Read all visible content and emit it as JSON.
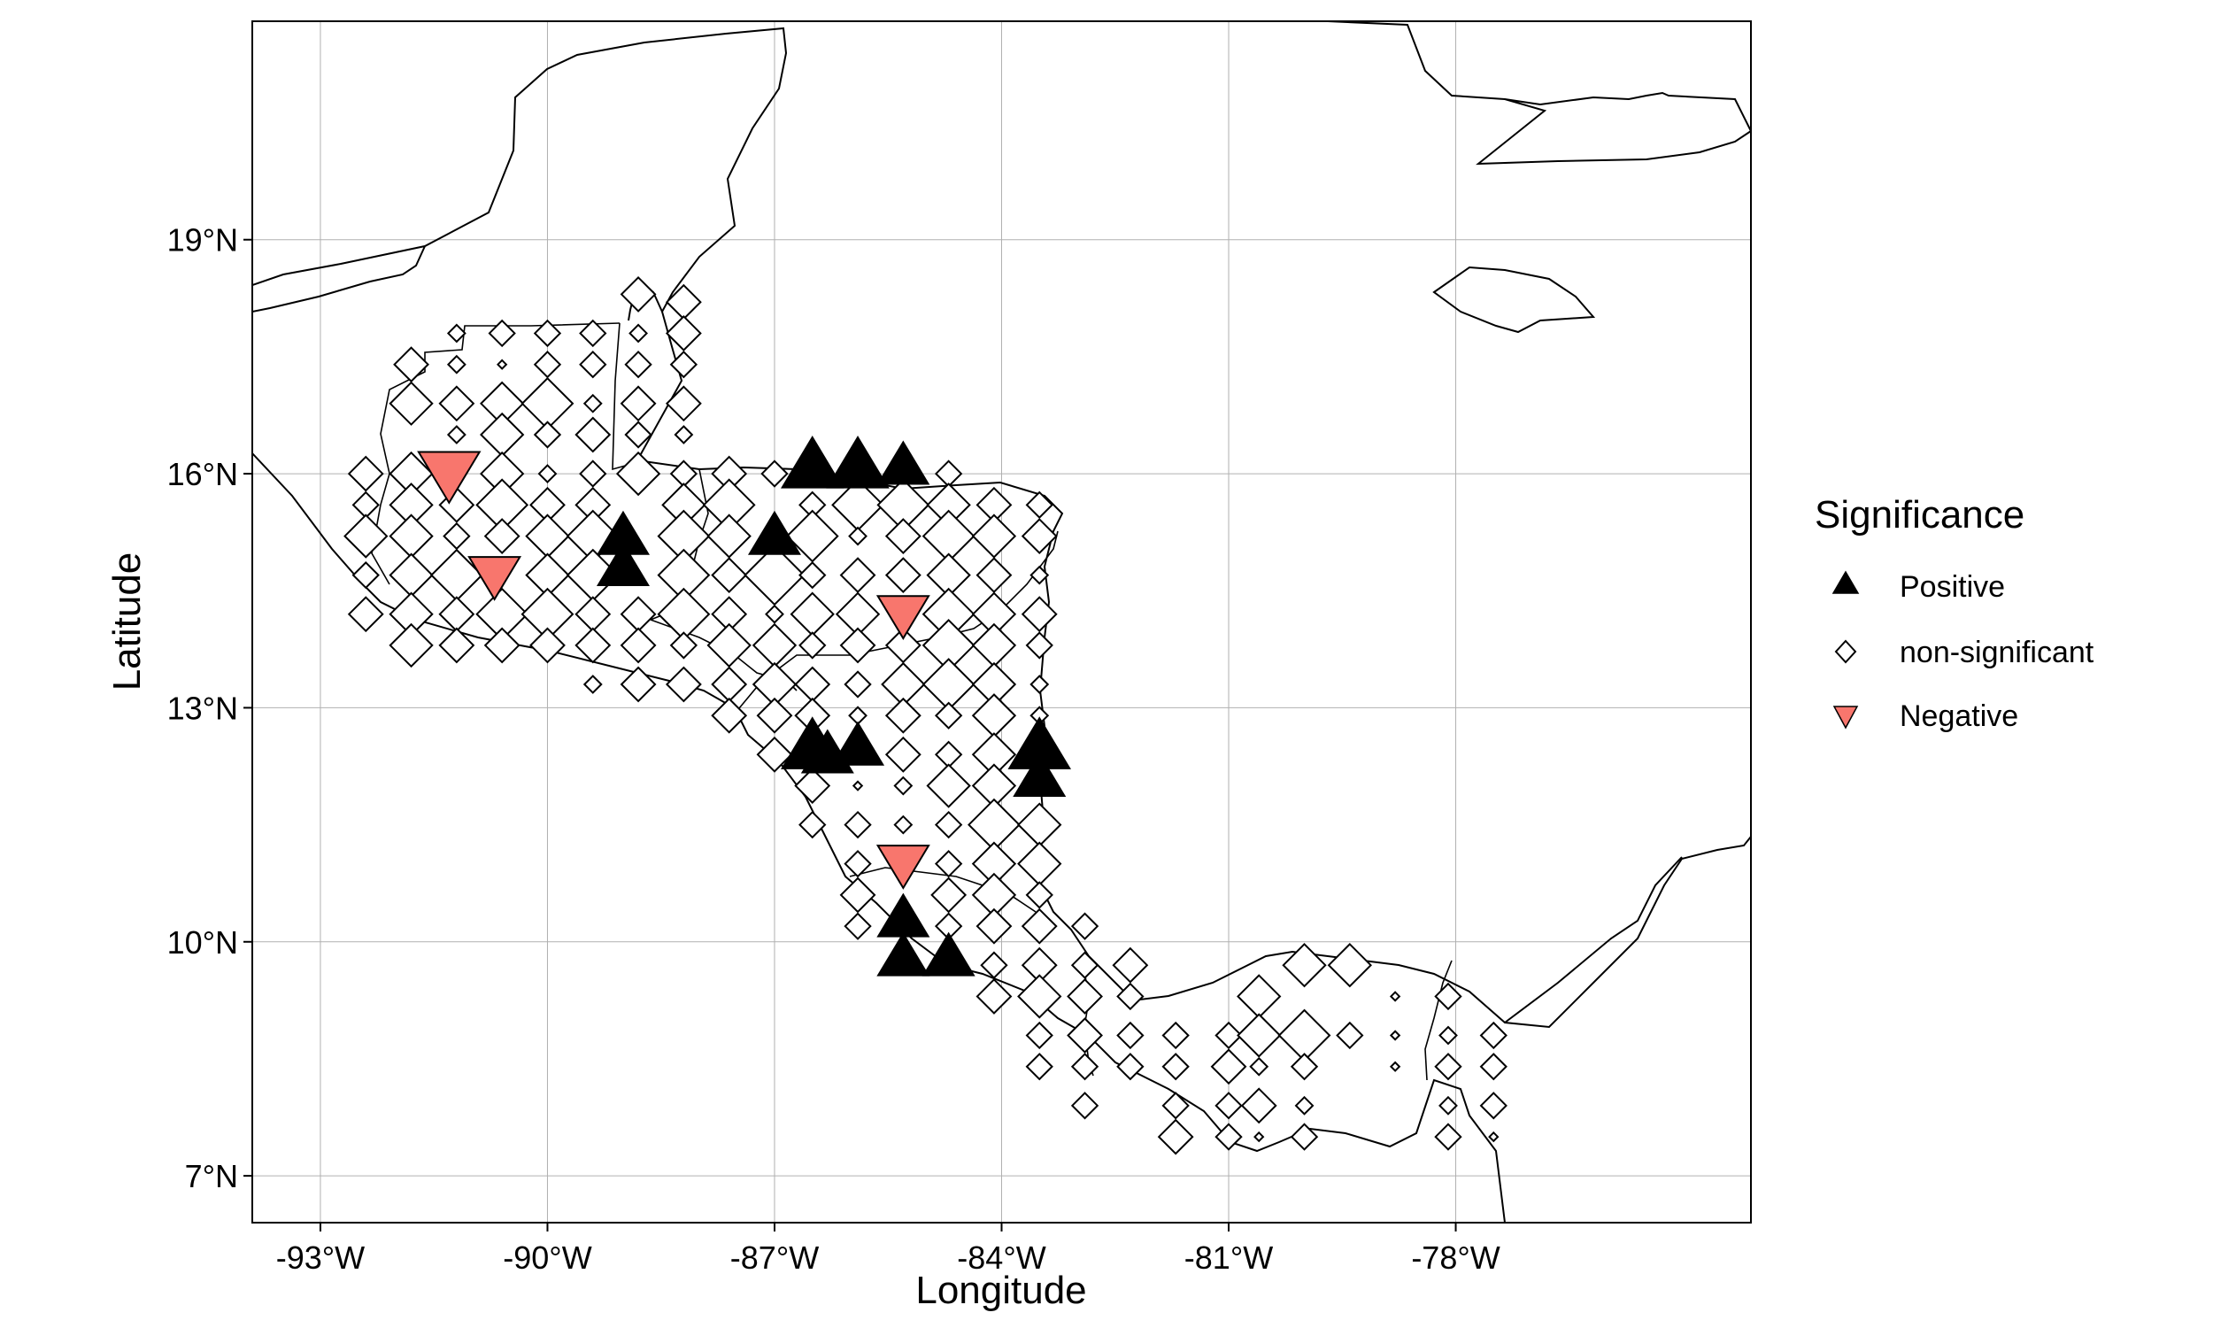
{
  "map": {
    "projection": "equirectangular",
    "lon_range": [
      -93.9,
      -74.1
    ],
    "lat_range": [
      6.4,
      21.8
    ],
    "x_ticks": [
      {
        "value": -93,
        "label": "-93°W"
      },
      {
        "value": -90,
        "label": "-90°W"
      },
      {
        "value": -87,
        "label": "-87°W"
      },
      {
        "value": -84,
        "label": "-84°W"
      },
      {
        "value": -81,
        "label": "-81°W"
      },
      {
        "value": -78,
        "label": "-78°W"
      }
    ],
    "y_ticks": [
      {
        "value": 7,
        "label": "7°N"
      },
      {
        "value": 10,
        "label": "10°N"
      },
      {
        "value": 13,
        "label": "13°N"
      },
      {
        "value": 16,
        "label": "16°N"
      },
      {
        "value": 19,
        "label": "19°N"
      }
    ],
    "xlabel": "Longitude",
    "ylabel": "Latitude",
    "grid": true,
    "legend": {
      "title": "Significance",
      "placement": "right",
      "entries": [
        {
          "key": "positive",
          "label": "Positive",
          "shape": "triangle-up",
          "color": "#000000"
        },
        {
          "key": "ns",
          "label": "non-significant",
          "shape": "diamond",
          "color": "#ffffff"
        },
        {
          "key": "negative",
          "label": "Negative",
          "shape": "triangle-down",
          "color": "#f8766d"
        }
      ]
    },
    "points": {
      "positive": [
        [
          -86.5,
          16.1,
          3
        ],
        [
          -85.9,
          16.1,
          3
        ],
        [
          -85.3,
          16.1,
          2.5
        ],
        [
          -89.0,
          15.2,
          2.5
        ],
        [
          -89.0,
          14.8,
          2.5
        ],
        [
          -87.0,
          15.2,
          2.5
        ],
        [
          -86.5,
          12.5,
          3
        ],
        [
          -86.3,
          12.4,
          2.5
        ],
        [
          -85.9,
          12.5,
          2.5
        ],
        [
          -83.5,
          12.5,
          3
        ],
        [
          -83.5,
          12.1,
          2.5
        ],
        [
          -85.3,
          10.3,
          2.5
        ],
        [
          -85.3,
          9.8,
          2.5
        ],
        [
          -84.7,
          9.8,
          2.5
        ]
      ],
      "negative": [
        [
          -91.3,
          16.0,
          3
        ],
        [
          -90.7,
          14.7,
          2.5
        ],
        [
          -85.3,
          14.2,
          2.5
        ],
        [
          -85.3,
          11.0,
          2.5
        ]
      ],
      "ns": [
        [
          -88.8,
          18.3,
          2
        ],
        [
          -88.2,
          18.2,
          2
        ],
        [
          -91.2,
          17.8,
          1
        ],
        [
          -90.6,
          17.8,
          1.5
        ],
        [
          -90.0,
          17.8,
          1.5
        ],
        [
          -89.4,
          17.8,
          1.5
        ],
        [
          -88.8,
          17.8,
          1
        ],
        [
          -88.2,
          17.8,
          2
        ],
        [
          -91.8,
          17.4,
          2
        ],
        [
          -91.2,
          17.4,
          1
        ],
        [
          -90.6,
          17.4,
          0.5
        ],
        [
          -90.0,
          17.4,
          1.5
        ],
        [
          -89.4,
          17.4,
          1.5
        ],
        [
          -88.8,
          17.4,
          1.5
        ],
        [
          -88.2,
          17.4,
          1.5
        ],
        [
          -91.8,
          16.9,
          2.5
        ],
        [
          -91.2,
          16.9,
          2
        ],
        [
          -90.6,
          16.9,
          2.5
        ],
        [
          -90.0,
          16.9,
          3
        ],
        [
          -89.4,
          16.9,
          1
        ],
        [
          -88.8,
          16.9,
          2
        ],
        [
          -88.2,
          16.9,
          2
        ],
        [
          -91.2,
          16.5,
          1
        ],
        [
          -90.6,
          16.5,
          2.5
        ],
        [
          -90.0,
          16.5,
          1.5
        ],
        [
          -89.4,
          16.5,
          2
        ],
        [
          -88.8,
          16.5,
          1.5
        ],
        [
          -88.2,
          16.5,
          1
        ],
        [
          -92.4,
          16.0,
          2
        ],
        [
          -91.8,
          16.0,
          2.5
        ],
        [
          -90.6,
          16.0,
          2.5
        ],
        [
          -90.0,
          16.0,
          1
        ],
        [
          -89.4,
          16.0,
          1.5
        ],
        [
          -88.8,
          16.0,
          2.5
        ],
        [
          -88.2,
          16.0,
          1.5
        ],
        [
          -87.6,
          16.0,
          2
        ],
        [
          -87.0,
          16.0,
          1.5
        ],
        [
          -84.7,
          16.0,
          1.5
        ],
        [
          -92.4,
          15.6,
          1.5
        ],
        [
          -91.8,
          15.6,
          2.5
        ],
        [
          -91.2,
          15.6,
          2
        ],
        [
          -90.6,
          15.6,
          3
        ],
        [
          -90.0,
          15.6,
          2
        ],
        [
          -89.4,
          15.6,
          2
        ],
        [
          -88.2,
          15.6,
          2.5
        ],
        [
          -87.6,
          15.6,
          3
        ],
        [
          -86.5,
          15.6,
          1.5
        ],
        [
          -85.9,
          15.6,
          3
        ],
        [
          -85.3,
          15.6,
          3
        ],
        [
          -84.7,
          15.6,
          2.5
        ],
        [
          -84.1,
          15.6,
          2
        ],
        [
          -83.5,
          15.6,
          1.5
        ],
        [
          -92.4,
          15.2,
          2.5
        ],
        [
          -91.8,
          15.2,
          2.5
        ],
        [
          -91.2,
          15.2,
          1.5
        ],
        [
          -90.6,
          15.2,
          2
        ],
        [
          -90.0,
          15.2,
          2.5
        ],
        [
          -89.4,
          15.2,
          3
        ],
        [
          -88.2,
          15.2,
          3
        ],
        [
          -87.6,
          15.2,
          2.5
        ],
        [
          -86.5,
          15.2,
          3
        ],
        [
          -85.9,
          15.2,
          1
        ],
        [
          -85.3,
          15.2,
          2
        ],
        [
          -84.7,
          15.2,
          3
        ],
        [
          -84.1,
          15.2,
          2.5
        ],
        [
          -83.5,
          15.2,
          2
        ],
        [
          -92.4,
          14.7,
          1.5
        ],
        [
          -91.8,
          14.7,
          2.5
        ],
        [
          -91.2,
          14.7,
          3
        ],
        [
          -90.0,
          14.7,
          2.5
        ],
        [
          -89.4,
          14.7,
          3
        ],
        [
          -88.2,
          14.7,
          3
        ],
        [
          -87.6,
          14.7,
          2
        ],
        [
          -87.0,
          14.7,
          3.5
        ],
        [
          -86.5,
          14.7,
          1.5
        ],
        [
          -85.9,
          14.7,
          2
        ],
        [
          -85.3,
          14.7,
          2
        ],
        [
          -84.7,
          14.7,
          2.5
        ],
        [
          -84.1,
          14.7,
          2
        ],
        [
          -83.5,
          14.7,
          1
        ],
        [
          -92.4,
          14.2,
          2
        ],
        [
          -91.8,
          14.2,
          2.5
        ],
        [
          -91.2,
          14.2,
          2
        ],
        [
          -90.6,
          14.2,
          3
        ],
        [
          -90.0,
          14.2,
          3
        ],
        [
          -89.4,
          14.2,
          2
        ],
        [
          -88.8,
          14.2,
          2
        ],
        [
          -88.2,
          14.2,
          3
        ],
        [
          -87.6,
          14.2,
          2
        ],
        [
          -87.0,
          14.2,
          1
        ],
        [
          -86.5,
          14.2,
          2.5
        ],
        [
          -85.9,
          14.2,
          2.5
        ],
        [
          -84.7,
          14.2,
          3
        ],
        [
          -84.1,
          14.2,
          2.5
        ],
        [
          -83.5,
          14.2,
          2
        ],
        [
          -91.8,
          13.8,
          2.5
        ],
        [
          -91.2,
          13.8,
          2
        ],
        [
          -90.6,
          13.8,
          2
        ],
        [
          -90.0,
          13.8,
          2
        ],
        [
          -89.4,
          13.8,
          2
        ],
        [
          -88.8,
          13.8,
          2
        ],
        [
          -88.2,
          13.8,
          1.5
        ],
        [
          -87.6,
          13.8,
          2.5
        ],
        [
          -87.0,
          13.8,
          2.5
        ],
        [
          -86.5,
          13.8,
          1.5
        ],
        [
          -85.9,
          13.8,
          2
        ],
        [
          -85.3,
          13.8,
          2
        ],
        [
          -84.7,
          13.8,
          3
        ],
        [
          -84.1,
          13.8,
          2.5
        ],
        [
          -83.5,
          13.8,
          1.5
        ],
        [
          -89.4,
          13.3,
          1
        ],
        [
          -88.8,
          13.3,
          2
        ],
        [
          -88.2,
          13.3,
          2
        ],
        [
          -87.6,
          13.3,
          2
        ],
        [
          -87.0,
          13.3,
          2.5
        ],
        [
          -86.5,
          13.3,
          2
        ],
        [
          -85.9,
          13.3,
          1.5
        ],
        [
          -85.3,
          13.3,
          2.5
        ],
        [
          -84.7,
          13.3,
          3
        ],
        [
          -84.1,
          13.3,
          2.5
        ],
        [
          -83.5,
          13.3,
          1
        ],
        [
          -87.6,
          12.9,
          2
        ],
        [
          -87.0,
          12.9,
          2
        ],
        [
          -86.5,
          12.9,
          2
        ],
        [
          -85.9,
          12.9,
          1
        ],
        [
          -85.3,
          12.9,
          2
        ],
        [
          -84.7,
          12.9,
          1.5
        ],
        [
          -84.1,
          12.9,
          2.5
        ],
        [
          -83.5,
          12.9,
          1
        ],
        [
          -87.0,
          12.4,
          2
        ],
        [
          -85.9,
          12.0,
          0.5
        ],
        [
          -85.3,
          12.4,
          2
        ],
        [
          -84.7,
          12.4,
          1.5
        ],
        [
          -84.1,
          12.4,
          2.5
        ],
        [
          -86.5,
          12.0,
          2
        ],
        [
          -85.3,
          12.0,
          1
        ],
        [
          -84.7,
          12.0,
          2.5
        ],
        [
          -84.1,
          12.0,
          2.5
        ],
        [
          -86.5,
          11.5,
          1.5
        ],
        [
          -85.9,
          11.5,
          1.5
        ],
        [
          -85.3,
          11.5,
          1
        ],
        [
          -84.7,
          11.5,
          1.5
        ],
        [
          -84.1,
          11.5,
          3
        ],
        [
          -83.5,
          11.5,
          2.5
        ],
        [
          -85.9,
          11.0,
          1.5
        ],
        [
          -84.7,
          11.0,
          1.5
        ],
        [
          -84.1,
          11.0,
          2.5
        ],
        [
          -83.5,
          11.0,
          2.5
        ],
        [
          -85.9,
          10.6,
          2
        ],
        [
          -84.7,
          10.6,
          2
        ],
        [
          -84.1,
          10.6,
          2.5
        ],
        [
          -83.5,
          10.6,
          1.5
        ],
        [
          -85.9,
          10.2,
          1.5
        ],
        [
          -84.7,
          10.2,
          1.5
        ],
        [
          -84.1,
          10.2,
          2
        ],
        [
          -83.5,
          10.2,
          2
        ],
        [
          -82.9,
          10.2,
          1.5
        ],
        [
          -84.1,
          9.7,
          1.5
        ],
        [
          -83.5,
          9.7,
          2
        ],
        [
          -82.9,
          9.7,
          1.5
        ],
        [
          -82.3,
          9.7,
          2
        ],
        [
          -84.1,
          9.3,
          2
        ],
        [
          -83.5,
          9.3,
          2.5
        ],
        [
          -82.9,
          9.3,
          2
        ],
        [
          -82.3,
          9.3,
          1.5
        ],
        [
          -80.6,
          9.3,
          2.5
        ],
        [
          -80.0,
          9.7,
          2.5
        ],
        [
          -79.4,
          9.7,
          2.5
        ],
        [
          -78.8,
          9.3,
          0.5
        ],
        [
          -78.1,
          9.3,
          1.5
        ],
        [
          -83.5,
          8.8,
          1.5
        ],
        [
          -82.9,
          8.8,
          2
        ],
        [
          -82.3,
          8.8,
          1.5
        ],
        [
          -81.7,
          8.8,
          1.5
        ],
        [
          -81.0,
          8.8,
          1.5
        ],
        [
          -80.6,
          8.8,
          2.5
        ],
        [
          -80.0,
          8.8,
          3
        ],
        [
          -79.4,
          8.8,
          1.5
        ],
        [
          -78.8,
          8.8,
          0.5
        ],
        [
          -78.1,
          8.8,
          1
        ],
        [
          -77.5,
          8.8,
          1.5
        ],
        [
          -83.5,
          8.4,
          1.5
        ],
        [
          -82.9,
          8.4,
          1.5
        ],
        [
          -82.3,
          8.4,
          1.5
        ],
        [
          -81.7,
          8.4,
          1.5
        ],
        [
          -81.0,
          8.4,
          2
        ],
        [
          -80.6,
          8.4,
          1
        ],
        [
          -80.0,
          8.4,
          1.5
        ],
        [
          -78.8,
          8.4,
          0.5
        ],
        [
          -78.1,
          8.4,
          1.5
        ],
        [
          -77.5,
          8.4,
          1.5
        ],
        [
          -82.9,
          7.9,
          1.5
        ],
        [
          -81.7,
          7.9,
          1.5
        ],
        [
          -81.0,
          7.9,
          1.5
        ],
        [
          -80.6,
          7.9,
          2
        ],
        [
          -80.0,
          7.9,
          1
        ],
        [
          -78.1,
          7.9,
          1
        ],
        [
          -77.5,
          7.9,
          1.5
        ],
        [
          -81.7,
          7.5,
          2
        ],
        [
          -81.0,
          7.5,
          1.5
        ],
        [
          -80.6,
          7.5,
          0.5
        ],
        [
          -80.0,
          7.5,
          1.5
        ],
        [
          -78.1,
          7.5,
          1.5
        ],
        [
          -77.5,
          7.5,
          0.5
        ]
      ]
    }
  }
}
